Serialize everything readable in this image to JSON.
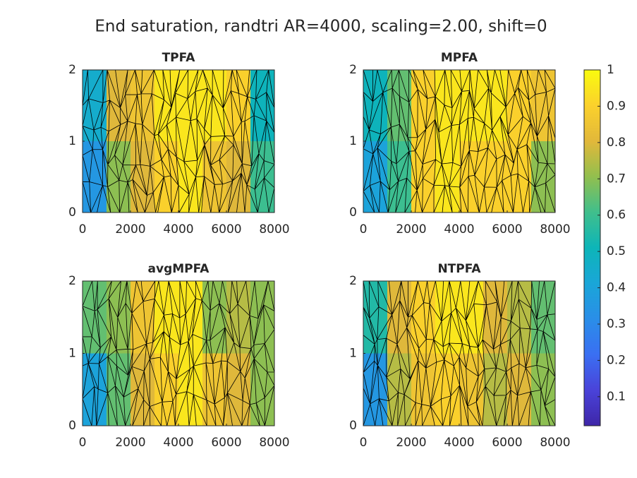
{
  "title": "End saturation, randtri AR=4000, scaling=2.00, shift=0",
  "colormap": [
    "#3e26a8",
    "#4a43d9",
    "#3a6ff2",
    "#2a8ee8",
    "#1aa6d8",
    "#0db5b8",
    "#40bf8c",
    "#92bf4e",
    "#e2b83a",
    "#fbd12c",
    "#f9fb0e"
  ],
  "chart_data": [
    {
      "type": "mesh",
      "title": "TPFA",
      "xlim": [
        0,
        8000
      ],
      "ylim": [
        0,
        2
      ],
      "xticks": [
        0,
        2000,
        4000,
        6000,
        8000
      ],
      "yticks": [
        0,
        1,
        2
      ],
      "values": [
        [
          0.45,
          0.8,
          0.85,
          0.95,
          0.95,
          0.95,
          0.9,
          0.5
        ],
        [
          0.35,
          0.7,
          0.8,
          0.9,
          0.95,
          0.85,
          0.8,
          0.6
        ]
      ]
    },
    {
      "type": "mesh",
      "title": "MPFA",
      "xlim": [
        0,
        8000
      ],
      "ylim": [
        0,
        2
      ],
      "xticks": [
        0,
        2000,
        4000,
        6000,
        8000
      ],
      "yticks": [
        0,
        1,
        2
      ],
      "values": [
        [
          0.5,
          0.65,
          0.9,
          0.95,
          0.95,
          0.95,
          0.9,
          0.85
        ],
        [
          0.4,
          0.6,
          0.9,
          0.95,
          0.9,
          0.9,
          0.9,
          0.7
        ]
      ]
    },
    {
      "type": "mesh",
      "title": "avgMPFA",
      "xlim": [
        0,
        8000
      ],
      "ylim": [
        0,
        2
      ],
      "xticks": [
        0,
        2000,
        4000,
        6000,
        8000
      ],
      "yticks": [
        0,
        1,
        2
      ],
      "values": [
        [
          0.65,
          0.7,
          0.85,
          0.95,
          0.95,
          0.7,
          0.75,
          0.7
        ],
        [
          0.4,
          0.65,
          0.8,
          0.9,
          0.95,
          0.85,
          0.8,
          0.7
        ]
      ]
    },
    {
      "type": "mesh",
      "title": "NTPFA",
      "xlim": [
        0,
        8000
      ],
      "ylim": [
        0,
        2
      ],
      "xticks": [
        0,
        2000,
        4000,
        6000,
        8000
      ],
      "yticks": [
        0,
        1,
        2
      ],
      "values": [
        [
          0.55,
          0.8,
          0.9,
          0.95,
          0.95,
          0.8,
          0.75,
          0.65
        ],
        [
          0.35,
          0.75,
          0.85,
          0.9,
          0.85,
          0.75,
          0.8,
          0.7
        ]
      ]
    },
    {
      "type": "colorbar",
      "clim": [
        0.02,
        1
      ],
      "ticks": [
        0.1,
        0.2,
        0.3,
        0.4,
        0.5,
        0.6,
        0.7,
        0.8,
        0.9,
        1
      ]
    }
  ]
}
